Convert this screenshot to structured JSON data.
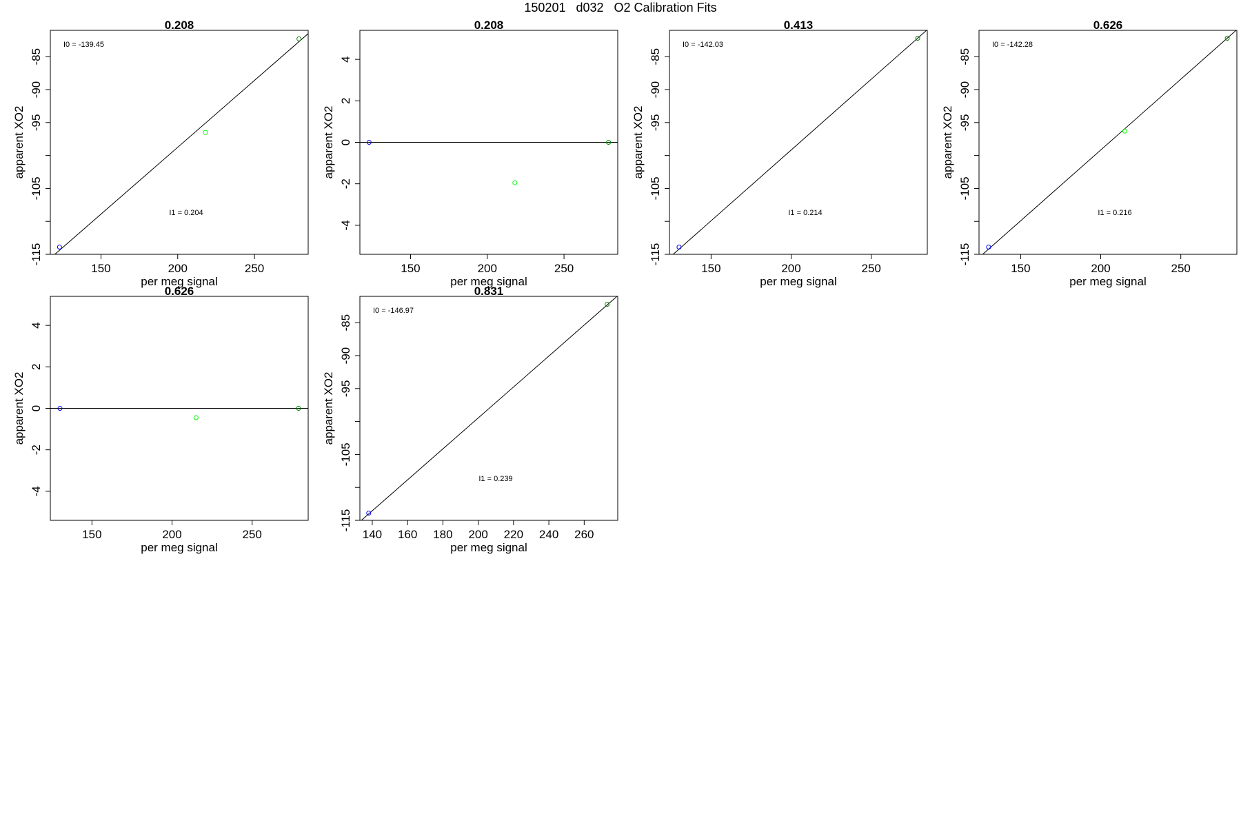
{
  "page_title": "150201   d032   O2 Calibration Fits",
  "colors": {
    "low_point": "#0000ff",
    "mid_point": "#00ff00",
    "high_point": "#008000",
    "line": "#000000",
    "frame": "#000000"
  },
  "chart_data": [
    {
      "type": "scatter",
      "title": "0.208",
      "xlabel": "per meg signal",
      "ylabel": "apparent XO2",
      "xlim": [
        117,
        285
      ],
      "ylim": [
        -115,
        -81
      ],
      "xticks": [
        150,
        200,
        250
      ],
      "yticks": [
        -115,
        -110,
        -105,
        -100,
        -95,
        -90,
        -85
      ],
      "ytick_labels": [
        "-115",
        "",
        "-105",
        "",
        "-95",
        "-90",
        "-85"
      ],
      "points": [
        {
          "x": 123,
          "y": -113.9,
          "color": "#0000ff"
        },
        {
          "x": 218,
          "y": -96.5,
          "color": "#00ff00"
        },
        {
          "x": 279,
          "y": -82.3,
          "color": "#008000"
        }
      ],
      "fit_line": {
        "x": [
          117,
          285
        ],
        "y": [
          -115.6,
          -81.5
        ]
      },
      "annotations": [
        {
          "text": "I0 =  -139.45",
          "pos": "top-left"
        },
        {
          "text": "I1 =  0.204",
          "pos": "center"
        }
      ]
    },
    {
      "type": "scatter",
      "title": "0.208",
      "xlabel": "per meg signal",
      "ylabel": "apparent XO2",
      "xlim": [
        117,
        285
      ],
      "ylim": [
        -5.4,
        5.4
      ],
      "xticks": [
        150,
        200,
        250
      ],
      "yticks": [
        -4,
        -2,
        0,
        2,
        4
      ],
      "ytick_labels": [
        "-4",
        "-2",
        "0",
        "2",
        "4"
      ],
      "points": [
        {
          "x": 123,
          "y": 0,
          "color": "#0000ff"
        },
        {
          "x": 218,
          "y": -1.95,
          "color": "#00ff00"
        },
        {
          "x": 279,
          "y": 0,
          "color": "#008000"
        }
      ],
      "fit_line": {
        "x": [
          117,
          285
        ],
        "y": [
          0,
          0
        ]
      },
      "annotations": []
    },
    {
      "type": "scatter",
      "title": "0.413",
      "xlabel": "per meg signal",
      "ylabel": "apparent XO2",
      "xlim": [
        124,
        285
      ],
      "ylim": [
        -115,
        -81
      ],
      "xticks": [
        150,
        200,
        250
      ],
      "yticks": [
        -115,
        -110,
        -105,
        -100,
        -95,
        -90,
        -85
      ],
      "ytick_labels": [
        "-115",
        "",
        "-105",
        "",
        "-95",
        "-90",
        "-85"
      ],
      "points": [
        {
          "x": 130,
          "y": -113.9,
          "color": "#0000ff"
        },
        {
          "x": 279,
          "y": -82.2,
          "color": "#008000"
        }
      ],
      "fit_line": {
        "x": [
          124,
          285
        ],
        "y": [
          -115.5,
          -80.9
        ]
      },
      "annotations": [
        {
          "text": "I0 =  -142.03",
          "pos": "top-left"
        },
        {
          "text": "I1 =  0.214",
          "pos": "center"
        }
      ]
    },
    {
      "type": "scatter",
      "title": "0.626",
      "xlabel": "per meg signal",
      "ylabel": "apparent XO2",
      "xlim": [
        124,
        285
      ],
      "ylim": [
        -115,
        -81
      ],
      "xticks": [
        150,
        200,
        250
      ],
      "yticks": [
        -115,
        -110,
        -105,
        -100,
        -95,
        -90,
        -85
      ],
      "ytick_labels": [
        "-115",
        "",
        "-105",
        "",
        "-95",
        "-90",
        "-85"
      ],
      "points": [
        {
          "x": 130,
          "y": -113.9,
          "color": "#0000ff"
        },
        {
          "x": 215,
          "y": -96.3,
          "color": "#00ff00"
        },
        {
          "x": 279,
          "y": -82.2,
          "color": "#008000"
        }
      ],
      "fit_line": {
        "x": [
          124,
          285
        ],
        "y": [
          -115.5,
          -80.9
        ]
      },
      "annotations": [
        {
          "text": "I0 =  -142.28",
          "pos": "top-left"
        },
        {
          "text": "I1 =  0.216",
          "pos": "center"
        }
      ]
    },
    {
      "type": "scatter",
      "title": "0.626",
      "xlabel": "per meg signal",
      "ylabel": "apparent XO2",
      "xlim": [
        124,
        285
      ],
      "ylim": [
        -5.4,
        5.4
      ],
      "xticks": [
        150,
        200,
        250
      ],
      "yticks": [
        -4,
        -2,
        0,
        2,
        4
      ],
      "ytick_labels": [
        "-4",
        "-2",
        "0",
        "2",
        "4"
      ],
      "points": [
        {
          "x": 130,
          "y": 0,
          "color": "#0000ff"
        },
        {
          "x": 215,
          "y": -0.45,
          "color": "#00ff00"
        },
        {
          "x": 279,
          "y": 0,
          "color": "#008000"
        }
      ],
      "fit_line": {
        "x": [
          124,
          285
        ],
        "y": [
          0,
          0
        ]
      },
      "annotations": []
    },
    {
      "type": "scatter",
      "title": "0.831",
      "xlabel": "per meg signal",
      "ylabel": "apparent XO2",
      "xlim": [
        133,
        279
      ],
      "ylim": [
        -115,
        -81
      ],
      "xticks": [
        140,
        160,
        180,
        200,
        220,
        240,
        260
      ],
      "yticks": [
        -115,
        -110,
        -105,
        -100,
        -95,
        -90,
        -85
      ],
      "ytick_labels": [
        "-115",
        "",
        "-105",
        "",
        "-95",
        "-90",
        "-85"
      ],
      "points": [
        {
          "x": 138,
          "y": -113.9,
          "color": "#0000ff"
        },
        {
          "x": 273,
          "y": -82.2,
          "color": "#008000"
        }
      ],
      "fit_line": {
        "x": [
          133,
          279
        ],
        "y": [
          -115.2,
          -80.9
        ]
      },
      "annotations": [
        {
          "text": "I0 =  -146.97",
          "pos": "top-left"
        },
        {
          "text": "I1 =  0.239",
          "pos": "center"
        }
      ]
    }
  ]
}
